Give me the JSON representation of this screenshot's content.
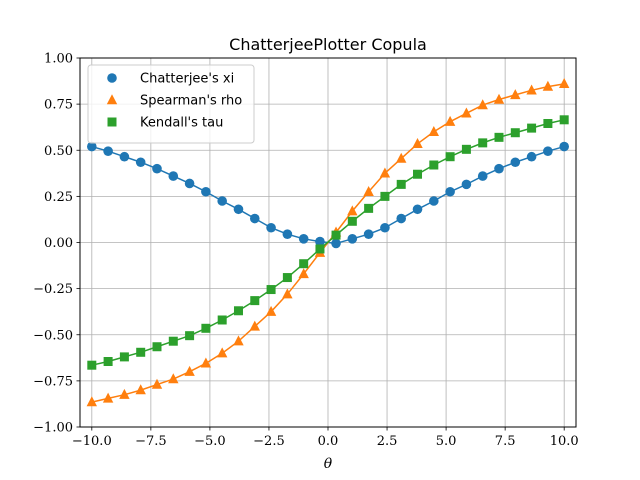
{
  "chart_data": {
    "type": "line",
    "title": "ChatterjeePlotter Copula",
    "xlabel": "θ",
    "ylabel": "",
    "xlim": [
      -10.5,
      10.5
    ],
    "ylim": [
      -1.0,
      1.0
    ],
    "xticks": [
      -10,
      -7.5,
      -5,
      -2.5,
      0,
      2.5,
      5,
      7.5,
      10
    ],
    "xtick_labels": [
      "−10.0",
      "−7.5",
      "−5.0",
      "−2.5",
      "0.0",
      "2.5",
      "5.0",
      "7.5",
      "10.0"
    ],
    "yticks": [
      -1,
      -0.75,
      -0.5,
      -0.25,
      0,
      0.25,
      0.5,
      0.75,
      1
    ],
    "ytick_labels": [
      "−1.00",
      "−0.75",
      "−0.50",
      "−0.25",
      "0.00",
      "0.25",
      "0.50",
      "0.75",
      "1.00"
    ],
    "grid": true,
    "legend_position": "top-left",
    "x": [
      -10.0,
      -9.31,
      -8.62,
      -7.93,
      -7.24,
      -6.55,
      -5.86,
      -5.17,
      -4.48,
      -3.79,
      -3.1,
      -2.41,
      -1.72,
      -1.03,
      -0.34,
      0.34,
      1.03,
      1.72,
      2.41,
      3.1,
      3.79,
      4.48,
      5.17,
      5.86,
      6.55,
      7.24,
      7.93,
      8.62,
      9.31,
      10.0
    ],
    "series": [
      {
        "name": "Chatterjee's xi",
        "color": "#1f77b4",
        "marker": "circle",
        "values": [
          0.52,
          0.495,
          0.465,
          0.435,
          0.4,
          0.36,
          0.32,
          0.275,
          0.225,
          0.18,
          0.13,
          0.08,
          0.045,
          0.02,
          0.005,
          -0.005,
          0.02,
          0.045,
          0.08,
          0.13,
          0.18,
          0.225,
          0.275,
          0.315,
          0.36,
          0.4,
          0.435,
          0.465,
          0.495,
          0.52
        ]
      },
      {
        "name": "Spearman's rho",
        "color": "#ff7f0e",
        "marker": "triangle",
        "values": [
          -0.865,
          -0.845,
          -0.825,
          -0.8,
          -0.77,
          -0.74,
          -0.7,
          -0.655,
          -0.6,
          -0.535,
          -0.455,
          -0.375,
          -0.28,
          -0.17,
          -0.055,
          0.055,
          0.17,
          0.275,
          0.375,
          0.455,
          0.535,
          0.6,
          0.655,
          0.7,
          0.745,
          0.775,
          0.8,
          0.825,
          0.845,
          0.86
        ]
      },
      {
        "name": "Kendall's tau",
        "color": "#2ca02c",
        "marker": "square",
        "values": [
          -0.665,
          -0.645,
          -0.62,
          -0.595,
          -0.565,
          -0.535,
          -0.505,
          -0.465,
          -0.42,
          -0.37,
          -0.315,
          -0.255,
          -0.19,
          -0.115,
          -0.035,
          0.04,
          0.115,
          0.185,
          0.25,
          0.315,
          0.37,
          0.42,
          0.465,
          0.505,
          0.54,
          0.57,
          0.595,
          0.62,
          0.645,
          0.665
        ]
      }
    ]
  }
}
